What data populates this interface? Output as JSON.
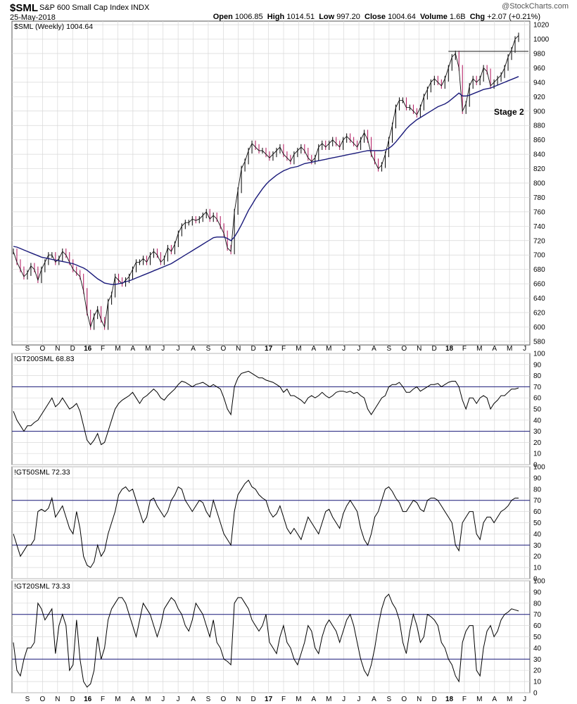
{
  "header": {
    "ticker": "$SML",
    "name": "S&P 600 Small Cap Index",
    "exchange": "INDX",
    "date": "25-May-2018",
    "copyright": "@StockCharts.com",
    "quote": {
      "open_label": "Open",
      "open": "1006.85",
      "high_label": "High",
      "high": "1014.51",
      "low_label": "Low",
      "low": "997.20",
      "close_label": "Close",
      "close": "1004.64",
      "volume_label": "Volume",
      "volume": "1.6B",
      "chg_label": "Chg",
      "chg": "+2.07 (+0.21%)"
    }
  },
  "colors": {
    "up": "#000000",
    "down": "#b0105a",
    "ma": "#1a1a7a",
    "hline": "#1a1a7a",
    "grid": "#d8d8d8"
  },
  "x_labels": [
    "S",
    "O",
    "N",
    "D",
    "16",
    "F",
    "M",
    "A",
    "M",
    "J",
    "J",
    "A",
    "S",
    "O",
    "N",
    "D",
    "17",
    "F",
    "M",
    "A",
    "M",
    "J",
    "J",
    "A",
    "S",
    "O",
    "N",
    "D",
    "18",
    "F",
    "M",
    "A",
    "M",
    "J"
  ],
  "chart_data": [
    {
      "type": "line",
      "title": "$SML (Weekly) 1004.64",
      "annotation": "Stage 2",
      "y_ticks": [
        580,
        600,
        620,
        640,
        660,
        680,
        700,
        720,
        740,
        760,
        780,
        800,
        820,
        840,
        860,
        880,
        900,
        920,
        940,
        960,
        980,
        1000,
        1020
      ],
      "ylim": [
        575,
        1025
      ],
      "resistance": 983,
      "series": [
        {
          "values": [
            705,
            690,
            680,
            670,
            675,
            685,
            680,
            665,
            680,
            690,
            700,
            700,
            690,
            695,
            705,
            700,
            690,
            680,
            675,
            670,
            650,
            620,
            600,
            615,
            625,
            610,
            600,
            635,
            645,
            670,
            665,
            660,
            665,
            670,
            680,
            690,
            690,
            695,
            690,
            700,
            705,
            700,
            690,
            695,
            710,
            705,
            715,
            730,
            740,
            745,
            745,
            750,
            748,
            750,
            755,
            760,
            750,
            755,
            750,
            740,
            730,
            710,
            705,
            760,
            790,
            820,
            830,
            845,
            855,
            850,
            845,
            845,
            840,
            835,
            840,
            845,
            850,
            840,
            835,
            830,
            840,
            845,
            850,
            845,
            835,
            830,
            835,
            850,
            855,
            850,
            855,
            860,
            855,
            850,
            860,
            865,
            860,
            855,
            850,
            860,
            870,
            860,
            840,
            830,
            820,
            825,
            840,
            860,
            880,
            905,
            915,
            915,
            905,
            905,
            900,
            895,
            905,
            920,
            930,
            940,
            945,
            940,
            935,
            945,
            960,
            975,
            980,
            960,
            900,
            910,
            935,
            945,
            940,
            945,
            960,
            955,
            935,
            940,
            945,
            950,
            960,
            975,
            985,
            1000,
            1005
          ]
        },
        {
          "values": [
            712,
            711,
            709,
            707,
            705,
            703,
            701,
            699,
            697,
            696,
            695,
            694,
            693,
            692,
            691,
            690,
            689,
            688,
            686,
            684,
            682,
            679,
            675,
            671,
            667,
            664,
            661,
            660,
            659,
            659,
            660,
            661,
            663,
            664,
            666,
            668,
            670,
            672,
            674,
            676,
            678,
            680,
            682,
            684,
            686,
            688,
            691,
            694,
            697,
            700,
            703,
            706,
            709,
            712,
            715,
            718,
            721,
            724,
            725,
            725,
            725,
            723,
            720,
            725,
            733,
            742,
            752,
            762,
            770,
            778,
            785,
            792,
            798,
            803,
            807,
            811,
            814,
            817,
            819,
            821,
            822,
            823,
            825,
            827,
            828,
            829,
            830,
            831,
            832,
            833,
            834,
            835,
            836,
            837,
            838,
            839,
            840,
            841,
            842,
            843,
            844,
            845,
            845,
            845,
            845,
            845,
            846,
            848,
            852,
            857,
            863,
            869,
            875,
            880,
            884,
            888,
            891,
            894,
            897,
            900,
            903,
            906,
            908,
            910,
            913,
            917,
            921,
            925,
            921,
            921,
            922,
            924,
            926,
            928,
            930,
            931,
            932,
            934,
            936,
            938,
            940,
            942,
            944,
            946,
            948
          ],
          "name": "",
          "color": "#1a1a7a"
        }
      ]
    },
    {
      "type": "line",
      "title": "!GT200SML 68.83",
      "y_ticks": [
        0,
        10,
        20,
        30,
        40,
        50,
        60,
        70,
        80,
        90,
        100
      ],
      "ylim": [
        0,
        100
      ],
      "levels": [
        30,
        70
      ],
      "values": [
        48,
        40,
        35,
        30,
        35,
        35,
        38,
        40,
        45,
        50,
        55,
        60,
        52,
        55,
        60,
        55,
        50,
        52,
        55,
        48,
        35,
        22,
        18,
        22,
        28,
        18,
        20,
        30,
        40,
        50,
        55,
        58,
        60,
        62,
        65,
        60,
        55,
        60,
        62,
        65,
        68,
        65,
        60,
        58,
        62,
        65,
        68,
        72,
        75,
        74,
        72,
        70,
        72,
        73,
        74,
        72,
        70,
        72,
        70,
        68,
        60,
        50,
        45,
        70,
        78,
        82,
        83,
        84,
        82,
        80,
        78,
        78,
        76,
        75,
        74,
        72,
        70,
        65,
        68,
        62,
        62,
        60,
        58,
        55,
        60,
        62,
        60,
        62,
        65,
        62,
        60,
        62,
        65,
        66,
        66,
        65,
        66,
        64,
        65,
        62,
        60,
        50,
        45,
        50,
        55,
        60,
        62,
        70,
        72,
        72,
        74,
        70,
        65,
        65,
        68,
        70,
        66,
        68,
        70,
        72,
        72,
        73,
        70,
        72,
        74,
        75,
        75,
        70,
        58,
        50,
        60,
        60,
        55,
        60,
        62,
        60,
        50,
        55,
        58,
        62,
        62,
        65,
        68,
        68,
        69
      ]
    },
    {
      "type": "line",
      "title": "!GT50SML 72.33",
      "y_ticks": [
        0,
        10,
        20,
        30,
        40,
        50,
        60,
        70,
        80,
        90,
        100
      ],
      "ylim": [
        0,
        100
      ],
      "levels": [
        30,
        70
      ],
      "values": [
        40,
        30,
        20,
        25,
        30,
        30,
        35,
        60,
        62,
        60,
        63,
        72,
        55,
        60,
        65,
        55,
        45,
        40,
        60,
        45,
        20,
        12,
        10,
        15,
        30,
        20,
        25,
        40,
        50,
        60,
        75,
        80,
        82,
        78,
        80,
        70,
        60,
        50,
        55,
        70,
        72,
        65,
        60,
        55,
        60,
        70,
        75,
        82,
        80,
        70,
        65,
        60,
        65,
        70,
        68,
        60,
        55,
        70,
        60,
        50,
        40,
        35,
        30,
        60,
        75,
        80,
        85,
        88,
        82,
        80,
        75,
        72,
        70,
        60,
        55,
        58,
        65,
        55,
        45,
        40,
        45,
        40,
        35,
        45,
        55,
        50,
        45,
        40,
        50,
        60,
        62,
        55,
        50,
        45,
        58,
        65,
        70,
        65,
        60,
        45,
        35,
        30,
        40,
        55,
        60,
        70,
        80,
        82,
        78,
        72,
        68,
        60,
        60,
        65,
        70,
        68,
        62,
        60,
        70,
        72,
        72,
        70,
        65,
        60,
        55,
        50,
        30,
        25,
        50,
        55,
        60,
        60,
        40,
        35,
        50,
        55,
        55,
        50,
        55,
        60,
        62,
        65,
        70,
        72,
        72
      ]
    },
    {
      "type": "line",
      "title": "!GT20SML 73.33",
      "y_ticks": [
        0,
        10,
        20,
        30,
        40,
        50,
        60,
        70,
        80,
        90,
        100
      ],
      "ylim": [
        0,
        100
      ],
      "levels": [
        30,
        70
      ],
      "values": [
        45,
        20,
        15,
        30,
        40,
        40,
        45,
        80,
        75,
        65,
        70,
        75,
        35,
        60,
        70,
        60,
        20,
        25,
        65,
        30,
        10,
        5,
        8,
        20,
        50,
        30,
        40,
        65,
        75,
        80,
        85,
        85,
        80,
        70,
        60,
        50,
        65,
        80,
        75,
        70,
        60,
        50,
        60,
        75,
        80,
        85,
        82,
        75,
        70,
        60,
        55,
        65,
        80,
        75,
        70,
        60,
        50,
        65,
        45,
        40,
        30,
        28,
        25,
        80,
        85,
        85,
        80,
        75,
        65,
        60,
        55,
        60,
        70,
        45,
        40,
        35,
        50,
        60,
        45,
        40,
        30,
        25,
        35,
        45,
        60,
        55,
        40,
        35,
        50,
        60,
        65,
        60,
        55,
        45,
        55,
        65,
        70,
        60,
        45,
        30,
        20,
        15,
        25,
        40,
        60,
        75,
        85,
        88,
        80,
        75,
        65,
        45,
        35,
        55,
        70,
        60,
        45,
        50,
        70,
        68,
        65,
        60,
        45,
        40,
        30,
        25,
        15,
        10,
        45,
        55,
        60,
        60,
        20,
        15,
        40,
        55,
        60,
        50,
        55,
        65,
        70,
        72,
        75,
        74,
        73
      ]
    }
  ]
}
